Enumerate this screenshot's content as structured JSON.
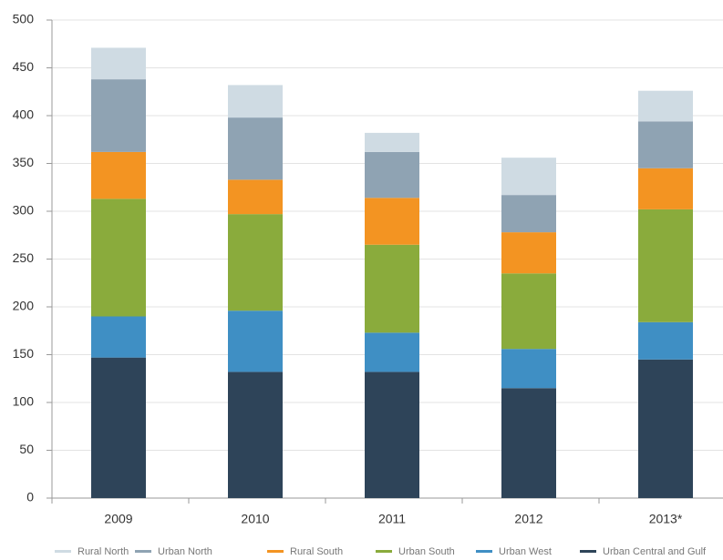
{
  "chart_data": {
    "type": "stacked_bar",
    "categories": [
      "2009",
      "2010",
      "2011",
      "2012",
      "2013*"
    ],
    "series": [
      {
        "name": "Rural North",
        "color": "#cfdbe3",
        "values": [
          33,
          34,
          20,
          39,
          32
        ]
      },
      {
        "name": "Urban North",
        "color": "#8fa3b3",
        "values": [
          76,
          65,
          48,
          39,
          49
        ]
      },
      {
        "name": "Rural South",
        "color": "#f39422",
        "values": [
          49,
          36,
          49,
          43,
          43
        ]
      },
      {
        "name": "Urban South",
        "color": "#8aab3c",
        "values": [
          123,
          101,
          92,
          79,
          118
        ]
      },
      {
        "name": "Urban West",
        "color": "#3f8fc4",
        "values": [
          43,
          64,
          41,
          41,
          39
        ]
      },
      {
        "name": "Urban Central and Gulf",
        "color": "#2e4459",
        "values": [
          147,
          132,
          132,
          115,
          145
        ]
      }
    ],
    "ylim": [
      0,
      500
    ],
    "yticks": [
      0,
      50,
      100,
      150,
      200,
      250,
      300,
      350,
      400,
      450,
      500
    ],
    "grid": true,
    "legend": "bottom"
  }
}
